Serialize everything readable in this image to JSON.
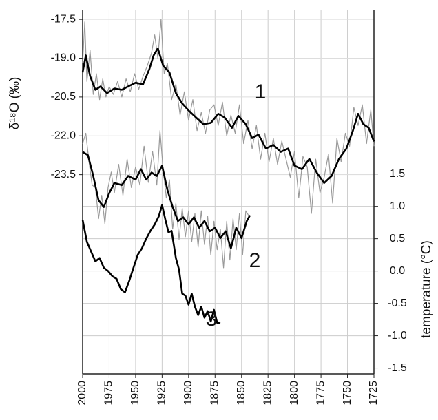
{
  "chart_data": {
    "type": "line",
    "y_label": "δ¹⁸O (‰)",
    "y2_label": "temperature (°C)",
    "xlim": [
      2000,
      1725
    ],
    "xticks": [
      2000,
      1975,
      1950,
      1925,
      1900,
      1875,
      1850,
      1825,
      1800,
      1775,
      1750,
      1725
    ],
    "ylim": [
      -31.2,
      -17.15
    ],
    "yticks": [
      -17.5,
      {
        "value": -19,
        "label": "-19.0"
      },
      -20.5,
      {
        "value": -22,
        "label": "-22.0"
      },
      -23.5
    ],
    "y2lim": [
      -1.59,
      4.03
    ],
    "y2ticks": [
      1.5,
      {
        "value": 1,
        "label": "1.0"
      },
      0.5,
      {
        "value": 0,
        "label": "0.0"
      },
      -0.5,
      {
        "value": -1,
        "label": "-1.0"
      },
      -1.5
    ],
    "grid": true,
    "series": [
      {
        "color": "#9a9a9a",
        "linewidth": 1.2,
        "x": [
          2000,
          1998,
          1996,
          1993,
          1990,
          1987,
          1984,
          1981,
          1978,
          1975,
          1971,
          1967,
          1963,
          1959,
          1955,
          1951,
          1947,
          1943,
          1939,
          1935,
          1932,
          1929,
          1926,
          1923,
          1920,
          1916,
          1912,
          1908,
          1904,
          1900,
          1896,
          1892,
          1888,
          1884,
          1880,
          1876,
          1872,
          1868,
          1864,
          1860,
          1856,
          1852,
          1848,
          1844,
          1840,
          1836,
          1832,
          1828,
          1824,
          1820,
          1816,
          1812,
          1808,
          1804,
          1800,
          1796,
          1792,
          1788,
          1784,
          1780,
          1776,
          1772,
          1768,
          1764,
          1760,
          1756,
          1752,
          1748,
          1744,
          1740,
          1736,
          1732,
          1728,
          1725
        ],
        "values": [
          -19.2,
          -17.6,
          -19.9,
          -18.7,
          -20.4,
          -19.6,
          -20.6,
          -19.8,
          -20.5,
          -20.1,
          -20.4,
          -19.9,
          -20.5,
          -19.8,
          -20.3,
          -19.6,
          -20.2,
          -19.7,
          -19.3,
          -18.8,
          -18.1,
          -19.0,
          -17.5,
          -19.6,
          -19.2,
          -20.6,
          -20.0,
          -21.2,
          -20.3,
          -21.4,
          -20.6,
          -21.8,
          -21.1,
          -21.9,
          -21.0,
          -20.8,
          -21.6,
          -20.7,
          -22.0,
          -21.2,
          -21.9,
          -20.8,
          -22.3,
          -21.4,
          -22.5,
          -21.6,
          -22.9,
          -21.9,
          -23.0,
          -22.1,
          -23.1,
          -22.2,
          -22.9,
          -23.6,
          -22.6,
          -24.4,
          -22.8,
          -23.2,
          -25.0,
          -22.9,
          -24.2,
          -23.6,
          -22.7,
          -24.6,
          -22.1,
          -23.0,
          -21.9,
          -22.4,
          -20.9,
          -21.6,
          -20.8,
          -22.3,
          -21.0,
          -22.4
        ]
      },
      {
        "color": "#000000",
        "linewidth": 2.6,
        "x": [
          2000,
          1997,
          1993,
          1988,
          1983,
          1977,
          1970,
          1963,
          1957,
          1950,
          1943,
          1937,
          1933,
          1929,
          1924,
          1918,
          1912,
          1906,
          1900,
          1893,
          1886,
          1879,
          1872,
          1866,
          1859,
          1853,
          1846,
          1840,
          1834,
          1827,
          1820,
          1813,
          1806,
          1800,
          1793,
          1786,
          1779,
          1772,
          1765,
          1758,
          1751,
          1745,
          1740,
          1735,
          1730,
          1725
        ],
        "values": [
          -19.55,
          -18.89,
          -19.69,
          -20.22,
          -20.09,
          -20.35,
          -20.17,
          -20.22,
          -20.09,
          -19.95,
          -20.01,
          -19.42,
          -18.89,
          -18.62,
          -19.29,
          -19.55,
          -20.35,
          -20.75,
          -21.02,
          -21.29,
          -21.55,
          -21.5,
          -21.15,
          -21.29,
          -21.69,
          -21.23,
          -21.55,
          -22.09,
          -21.95,
          -22.49,
          -22.35,
          -22.62,
          -22.49,
          -23.15,
          -23.29,
          -22.89,
          -23.42,
          -23.82,
          -23.55,
          -22.89,
          -22.49,
          -21.82,
          -21.15,
          -21.55,
          -21.69,
          -22.22
        ]
      },
      {
        "color": "#9a9a9a",
        "linewidth": 1.2,
        "x": [
          2000,
          1997,
          1994,
          1991,
          1988,
          1985,
          1982,
          1979,
          1976,
          1973,
          1970,
          1966,
          1962,
          1958,
          1954,
          1950,
          1946,
          1942,
          1938,
          1934,
          1930,
          1927,
          1924,
          1921,
          1918,
          1915,
          1912,
          1909,
          1906,
          1903,
          1900,
          1897,
          1894,
          1891,
          1888,
          1885,
          1882,
          1879,
          1876,
          1873,
          1870,
          1867,
          1864,
          1861,
          1858,
          1855,
          1852,
          1849,
          1846,
          1843
        ],
        "values": [
          -22.3,
          -21.9,
          -23.0,
          -23.9,
          -24.0,
          -25.2,
          -24.3,
          -25.4,
          -24.0,
          -23.4,
          -24.2,
          -23.1,
          -24.3,
          -22.9,
          -24.0,
          -23.2,
          -23.9,
          -22.4,
          -23.8,
          -22.6,
          -23.9,
          -21.8,
          -23.3,
          -24.4,
          -23.7,
          -25.6,
          -24.6,
          -26.0,
          -24.8,
          -25.9,
          -24.9,
          -26.1,
          -25.0,
          -26.3,
          -24.9,
          -26.2,
          -25.1,
          -26.6,
          -25.3,
          -26.4,
          -25.6,
          -27.1,
          -25.3,
          -26.8,
          -25.2,
          -26.4,
          -25.0,
          -26.6,
          -24.9,
          -25.1
        ]
      },
      {
        "color": "#000000",
        "linewidth": 2.6,
        "x": [
          2000,
          1995,
          1990,
          1985,
          1980,
          1975,
          1970,
          1963,
          1957,
          1950,
          1945,
          1940,
          1935,
          1930,
          1925,
          1920,
          1915,
          1910,
          1905,
          1900,
          1895,
          1890,
          1885,
          1880,
          1875,
          1870,
          1865,
          1860,
          1855,
          1850,
          1845,
          1842
        ],
        "values": [
          -22.62,
          -22.75,
          -23.55,
          -24.49,
          -24.75,
          -24.22,
          -23.82,
          -23.9,
          -23.55,
          -23.69,
          -23.29,
          -23.69,
          -23.42,
          -23.55,
          -23.15,
          -24.09,
          -24.75,
          -25.29,
          -25.15,
          -25.42,
          -25.15,
          -25.55,
          -25.29,
          -25.69,
          -25.55,
          -25.95,
          -25.69,
          -26.35,
          -25.55,
          -25.95,
          -25.29,
          -25.07
        ]
      },
      {
        "color": "#000000",
        "linewidth": 2.6,
        "axis": "y2",
        "x": [
          2000,
          1996,
          1992,
          1988,
          1984,
          1980,
          1976,
          1972,
          1968,
          1964,
          1960,
          1956,
          1952,
          1948,
          1944,
          1940,
          1936,
          1932,
          1928,
          1925,
          1922,
          1919,
          1916,
          1912,
          1909,
          1906,
          1903,
          1900,
          1897,
          1894,
          1891,
          1888,
          1885,
          1882,
          1879,
          1876,
          1873,
          1870
        ],
        "values": [
          0.79,
          0.45,
          0.3,
          0.15,
          0.2,
          0.05,
          0.0,
          -0.08,
          -0.12,
          -0.28,
          -0.33,
          -0.15,
          0.05,
          0.25,
          0.35,
          0.5,
          0.62,
          0.72,
          0.85,
          1.02,
          0.8,
          0.6,
          0.62,
          0.2,
          0.02,
          -0.35,
          -0.38,
          -0.52,
          -0.35,
          -0.55,
          -0.68,
          -0.55,
          -0.72,
          -0.62,
          -0.78,
          -0.6,
          -0.8,
          -0.81
        ]
      }
    ],
    "annotations": [
      "1",
      "2",
      "3"
    ]
  }
}
